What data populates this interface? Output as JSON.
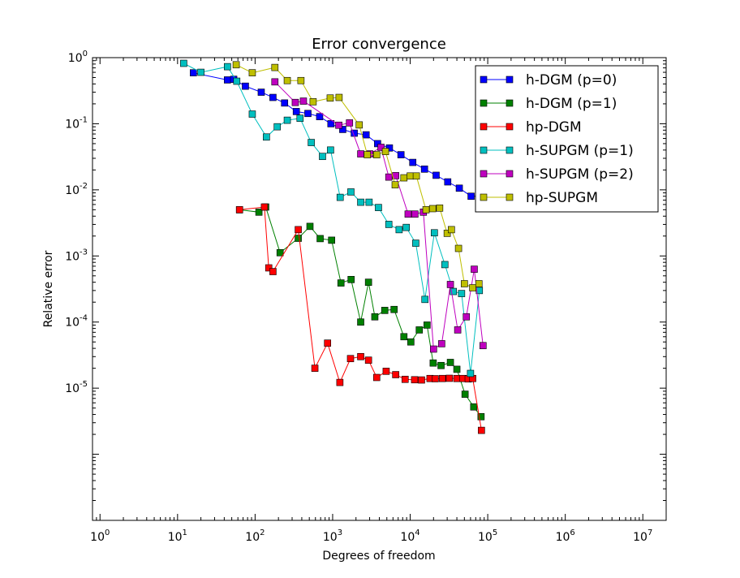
{
  "chart_data": {
    "type": "line",
    "title": "Error convergence",
    "xlabel": "Degrees of freedom",
    "ylabel": "Relative error",
    "xscale": "log",
    "yscale": "log",
    "xlim": [
      0.8,
      20000000
    ],
    "ylim": [
      1e-07,
      1
    ],
    "x_ticks": [
      {
        "base": "10",
        "exp": "0",
        "value": 1
      },
      {
        "base": "10",
        "exp": "1",
        "value": 10
      },
      {
        "base": "10",
        "exp": "2",
        "value": 100
      },
      {
        "base": "10",
        "exp": "3",
        "value": 1000
      },
      {
        "base": "10",
        "exp": "4",
        "value": 10000
      },
      {
        "base": "10",
        "exp": "5",
        "value": 100000
      },
      {
        "base": "10",
        "exp": "6",
        "value": 1000000
      },
      {
        "base": "10",
        "exp": "7",
        "value": 10000000
      }
    ],
    "y_ticks": [
      {
        "base": "10",
        "exp": "0",
        "value": 1
      },
      {
        "base": "10",
        "exp": "-1",
        "value": 0.1
      },
      {
        "base": "10",
        "exp": "-2",
        "value": 0.01
      },
      {
        "base": "10",
        "exp": "-3",
        "value": 0.001
      },
      {
        "base": "10",
        "exp": "-4",
        "value": 0.0001
      },
      {
        "base": "10",
        "exp": "-5",
        "value": 1e-05
      }
    ],
    "grid": false,
    "legend_position": "top-right",
    "series": [
      {
        "name": "h-DGM (p=0)",
        "color": "#0000ff",
        "x": [
          16,
          44,
          53,
          75,
          120,
          170,
          240,
          340,
          480,
          680,
          950,
          1350,
          1900,
          2700,
          3800,
          5400,
          7600,
          10800,
          15300,
          21600,
          30500,
          43000,
          61000,
          86000
        ],
        "y": [
          0.59,
          0.46,
          0.47,
          0.37,
          0.3,
          0.25,
          0.206,
          0.153,
          0.143,
          0.128,
          0.1,
          0.082,
          0.072,
          0.068,
          0.05,
          0.043,
          0.034,
          0.026,
          0.0206,
          0.0166,
          0.0132,
          0.0106,
          0.008,
          0.008
        ]
      },
      {
        "name": "h-DGM (p=1)",
        "color": "#008000",
        "x": [
          63,
          112,
          137,
          210,
          360,
          510,
          690,
          970,
          1280,
          1730,
          2300,
          2900,
          3500,
          4700,
          6200,
          8300,
          10200,
          13100,
          16500,
          19800,
          25000,
          33000,
          40000,
          51000,
          66000,
          82000
        ],
        "y": [
          0.005,
          0.0046,
          0.0055,
          0.00112,
          0.00185,
          0.0028,
          0.00183,
          0.00173,
          0.00039,
          0.00044,
          0.0001,
          0.0004,
          0.00012,
          0.00015,
          0.000155,
          6e-05,
          5e-05,
          7.6e-05,
          9e-05,
          2.4e-05,
          2.2e-05,
          2.45e-05,
          1.93e-05,
          8.1e-06,
          5.2e-06,
          3.7e-06
        ]
      },
      {
        "name": "hp-DGM",
        "color": "#ff0000",
        "x": [
          63,
          132,
          150,
          170,
          360,
          590,
          860,
          1240,
          1700,
          2300,
          2900,
          3700,
          4900,
          6500,
          8600,
          11400,
          14000,
          18000,
          21000,
          26000,
          32000,
          40000,
          48000,
          56000,
          64000,
          83000
        ],
        "y": [
          0.005,
          0.0055,
          0.00066,
          0.00058,
          0.0025,
          2e-05,
          4.8e-05,
          1.22e-05,
          2.8e-05,
          3e-05,
          2.65e-05,
          1.45e-05,
          1.8e-05,
          1.6e-05,
          1.36e-05,
          1.34e-05,
          1.33e-05,
          1.4e-05,
          1.39e-05,
          1.4e-05,
          1.41e-05,
          1.4e-05,
          1.4e-05,
          1.38e-05,
          1.4e-05,
          2.3e-06
        ]
      },
      {
        "name": "h-SUPGM (p=1)",
        "color": "#00bfbf",
        "x": [
          12,
          20,
          44,
          58,
          92,
          140,
          193,
          260,
          380,
          530,
          740,
          940,
          1250,
          1720,
          2300,
          2950,
          3900,
          5300,
          7200,
          8900,
          11800,
          15500,
          20500,
          28000,
          36000,
          46000,
          60000,
          78000
        ],
        "y": [
          0.82,
          0.6,
          0.73,
          0.44,
          0.14,
          0.063,
          0.09,
          0.113,
          0.121,
          0.052,
          0.032,
          0.04,
          0.0077,
          0.0093,
          0.0065,
          0.0065,
          0.0054,
          0.003,
          0.0025,
          0.0027,
          0.00156,
          0.00022,
          0.00224,
          0.00074,
          0.00029,
          0.00027,
          1.67e-05,
          0.0003
        ]
      },
      {
        "name": "h-SUPGM (p=2)",
        "color": "#bf00bf",
        "x": [
          180,
          330,
          420,
          1200,
          1650,
          2300,
          3000,
          4200,
          5300,
          6500,
          9400,
          11500,
          14800,
          20000,
          25500,
          33000,
          41000,
          53000,
          67000,
          87000
        ],
        "y": [
          0.43,
          0.21,
          0.22,
          0.095,
          0.103,
          0.035,
          0.035,
          0.044,
          0.0156,
          0.0164,
          0.0043,
          0.0043,
          0.0046,
          3.9e-05,
          4.7e-05,
          0.00037,
          7.6e-05,
          0.00012,
          0.00063,
          4.4e-05
        ]
      },
      {
        "name": "hp-SUPGM",
        "color": "#bfbf00",
        "x": [
          57,
          92,
          180,
          260,
          390,
          560,
          930,
          1210,
          2200,
          2800,
          3700,
          4800,
          6400,
          8300,
          10000,
          12000,
          16000,
          19500,
          24000,
          30000,
          34000,
          42000,
          50000,
          64000,
          77000
        ],
        "y": [
          0.78,
          0.59,
          0.71,
          0.45,
          0.45,
          0.215,
          0.245,
          0.25,
          0.096,
          0.034,
          0.034,
          0.038,
          0.0119,
          0.0152,
          0.0162,
          0.0162,
          0.005,
          0.0052,
          0.0053,
          0.0022,
          0.0025,
          0.0013,
          0.00038,
          0.00033,
          0.00038
        ]
      }
    ]
  }
}
